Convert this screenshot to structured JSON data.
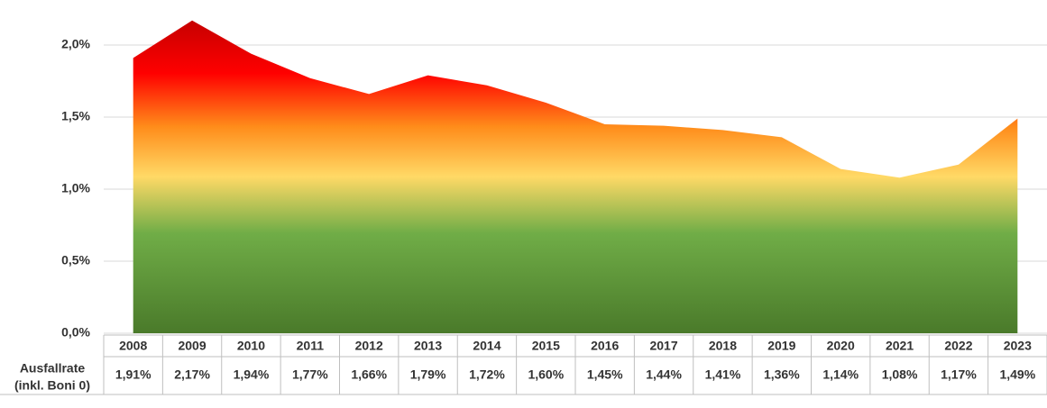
{
  "chart_data": {
    "type": "area",
    "categories": [
      "2008",
      "2009",
      "2010",
      "2011",
      "2012",
      "2013",
      "2014",
      "2015",
      "2016",
      "2017",
      "2018",
      "2019",
      "2020",
      "2021",
      "2022",
      "2023"
    ],
    "values": [
      1.91,
      2.17,
      1.94,
      1.77,
      1.66,
      1.79,
      1.72,
      1.6,
      1.45,
      1.44,
      1.41,
      1.36,
      1.14,
      1.08,
      1.17,
      1.49
    ],
    "value_labels": [
      "1,91%",
      "2,17%",
      "1,94%",
      "1,77%",
      "1,66%",
      "1,79%",
      "1,72%",
      "1,60%",
      "1,45%",
      "1,44%",
      "1,41%",
      "1,36%",
      "1,14%",
      "1,08%",
      "1,17%",
      "1,49%"
    ],
    "row_label": [
      "Ausfallrate",
      "(inkl. Boni 0)"
    ],
    "ylim": [
      0,
      2.3
    ],
    "yticks": [
      {
        "value": 0,
        "label": "0,0%"
      },
      {
        "value": 0.5,
        "label": "0,5%"
      },
      {
        "value": 1.0,
        "label": "1,0%"
      },
      {
        "value": 1.5,
        "label": "1,5%"
      },
      {
        "value": 2.0,
        "label": "2,0%"
      }
    ],
    "grid": true,
    "gradient_colors": [
      "#4a7a2a",
      "#70ad47",
      "#ffd966",
      "#ff8c1a",
      "#ff0000",
      "#b00000"
    ]
  }
}
